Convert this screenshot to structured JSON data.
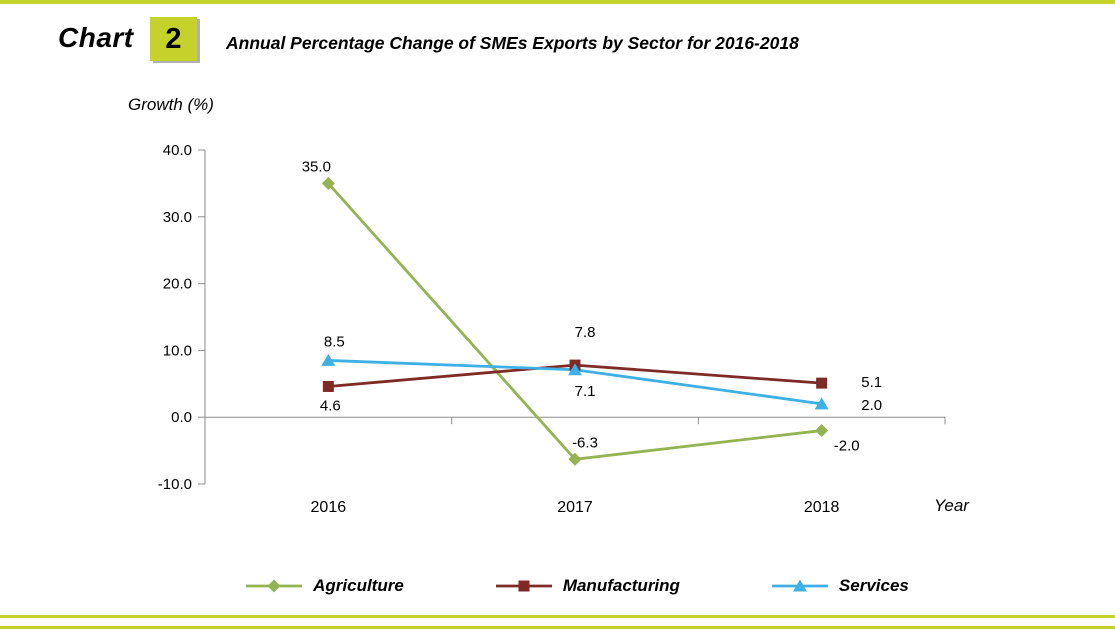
{
  "header": {
    "chart_label": "Chart",
    "chart_number": "2",
    "title": "Annual Percentage Change of SMEs Exports by Sector for 2016-2018"
  },
  "chart_data": {
    "type": "line",
    "title": "Annual Percentage Change of SMEs Exports by Sector for 2016-2018",
    "categories": [
      "2016",
      "2017",
      "2018"
    ],
    "series": [
      {
        "name": "Agriculture",
        "values": [
          35.0,
          -6.3,
          -2.0
        ],
        "labels": [
          "35.0",
          "-6.3",
          "-2.0"
        ],
        "color": "#94B353",
        "marker": "diamond",
        "label_offsets": [
          [
            -12,
            -12
          ],
          [
            10,
            -12
          ],
          [
            25,
            20
          ]
        ]
      },
      {
        "name": "Manufacturing",
        "values": [
          4.6,
          7.8,
          5.1
        ],
        "labels": [
          "4.6",
          "7.8",
          "5.1"
        ],
        "color": "#7E2B27",
        "marker": "square",
        "label_offsets": [
          [
            2,
            24
          ],
          [
            10,
            -28
          ],
          [
            50,
            4
          ]
        ]
      },
      {
        "name": "Services",
        "values": [
          8.5,
          7.1,
          2.0
        ],
        "labels": [
          "8.5",
          "7.1",
          "2.0"
        ],
        "color": "#3FB0E4",
        "marker": "triangle",
        "label_offsets": [
          [
            6,
            -14
          ],
          [
            10,
            26
          ],
          [
            50,
            6
          ]
        ]
      }
    ],
    "xlabel": "Year",
    "ylabel": "Growth (%)",
    "ylim": [
      -10,
      40
    ],
    "ytick_step": 10,
    "yticks": [
      "40.0",
      "30.0",
      "20.0",
      "10.0",
      "0.0",
      "-10.0"
    ],
    "grid": false,
    "legend_position": "bottom"
  },
  "colors": {
    "accent": "#C4D22B",
    "axis": "#8C8C8C",
    "text": "#000000"
  }
}
